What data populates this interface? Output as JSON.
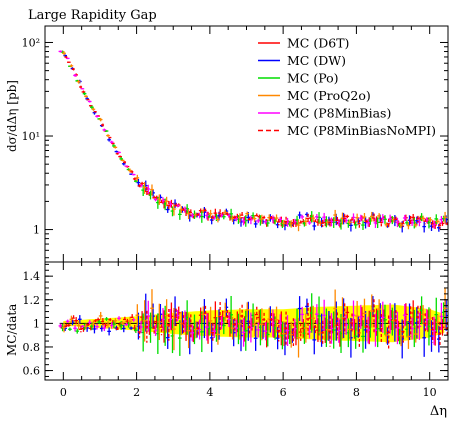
{
  "chart_data": [
    {
      "type": "scatter",
      "title": "Large Rapidity Gap",
      "ylabel": "dσ/dΔη [pb]",
      "xlabel": "",
      "yscale": "log",
      "xlim": [
        -0.5,
        10.5
      ],
      "ylim": [
        0.45,
        150
      ],
      "yticks": [
        {
          "v": 1,
          "label": "1"
        },
        {
          "v": 10,
          "label": "10¹"
        },
        {
          "v": 100,
          "label": "10²"
        }
      ],
      "legend_position": "top-right",
      "series": [
        {
          "name": "MC (D6T)",
          "color": "#ff0000",
          "dashed": false,
          "offset": -0.05,
          "errscale": 0.1,
          "noise": 0.06,
          "seed": 11
        },
        {
          "name": "MC (DW)",
          "color": "#0000ff",
          "dashed": false,
          "offset": 0.05,
          "errscale": 0.12,
          "noise": 0.09,
          "seed": 23
        },
        {
          "name": "MC (Po)",
          "color": "#00dd00",
          "dashed": false,
          "offset": -0.02,
          "errscale": 0.12,
          "noise": 0.08,
          "seed": 37
        },
        {
          "name": "MC (ProQ2o)",
          "color": "#ff8800",
          "dashed": false,
          "offset": 0.02,
          "errscale": 0.13,
          "noise": 0.08,
          "seed": 51
        },
        {
          "name": "MC (P8MinBias)",
          "color": "#ff00ff",
          "dashed": false,
          "offset": -0.08,
          "errscale": 0.1,
          "noise": 0.05,
          "seed": 67
        },
        {
          "name": "MC (P8MinBiasNoMPI)",
          "color": "#ff0000",
          "dashed": true,
          "offset": 0.08,
          "errscale": 0.1,
          "noise": 0.06,
          "seed": 79
        }
      ]
    },
    {
      "type": "scatter",
      "ylabel": "MC/data",
      "xlabel": "Δη",
      "xlim": [
        -0.5,
        10.5
      ],
      "ylim": [
        0.52,
        1.52
      ],
      "yticks": [
        {
          "v": 0.6,
          "label": "0.6"
        },
        {
          "v": 0.8,
          "label": "0.8"
        },
        {
          "v": 1.0,
          "label": "1"
        },
        {
          "v": 1.2,
          "label": "1.2"
        },
        {
          "v": 1.4,
          "label": "1.4"
        }
      ],
      "xticks": [
        {
          "v": 0,
          "label": "0"
        },
        {
          "v": 2,
          "label": "2"
        },
        {
          "v": 4,
          "label": "4"
        },
        {
          "v": 6,
          "label": "6"
        },
        {
          "v": 8,
          "label": "8"
        },
        {
          "v": 10,
          "label": "10"
        }
      ],
      "band_color": "#ffff00",
      "reference_value": 1
    }
  ],
  "data_curve": {
    "x": [
      0,
      0.2,
      0.4,
      0.6,
      0.8,
      1.0,
      1.2,
      1.4,
      1.6,
      1.8,
      2.0,
      2.2,
      2.4,
      2.6,
      2.8,
      3.0,
      3.2,
      3.4,
      3.6,
      3.8,
      4.0,
      4.5,
      5.0,
      5.5,
      6.0,
      6.5,
      7.0,
      7.5,
      8.0,
      8.5,
      9.0,
      9.5,
      10.0,
      10.4
    ],
    "y": [
      82,
      56,
      40,
      28,
      20,
      14.5,
      10.5,
      7.6,
      5.6,
      4.3,
      3.4,
      2.8,
      2.4,
      2.1,
      1.9,
      1.75,
      1.65,
      1.58,
      1.52,
      1.48,
      1.45,
      1.38,
      1.33,
      1.3,
      1.28,
      1.27,
      1.27,
      1.27,
      1.26,
      1.25,
      1.25,
      1.24,
      1.22,
      1.2
    ],
    "band_halfwidth_x": [
      0,
      1,
      2,
      3,
      4,
      5,
      6,
      7,
      8,
      9,
      10,
      10.4
    ],
    "band_halfwidth": [
      0.02,
      0.04,
      0.06,
      0.09,
      0.11,
      0.12,
      0.12,
      0.14,
      0.15,
      0.16,
      0.12,
      0.08
    ]
  }
}
